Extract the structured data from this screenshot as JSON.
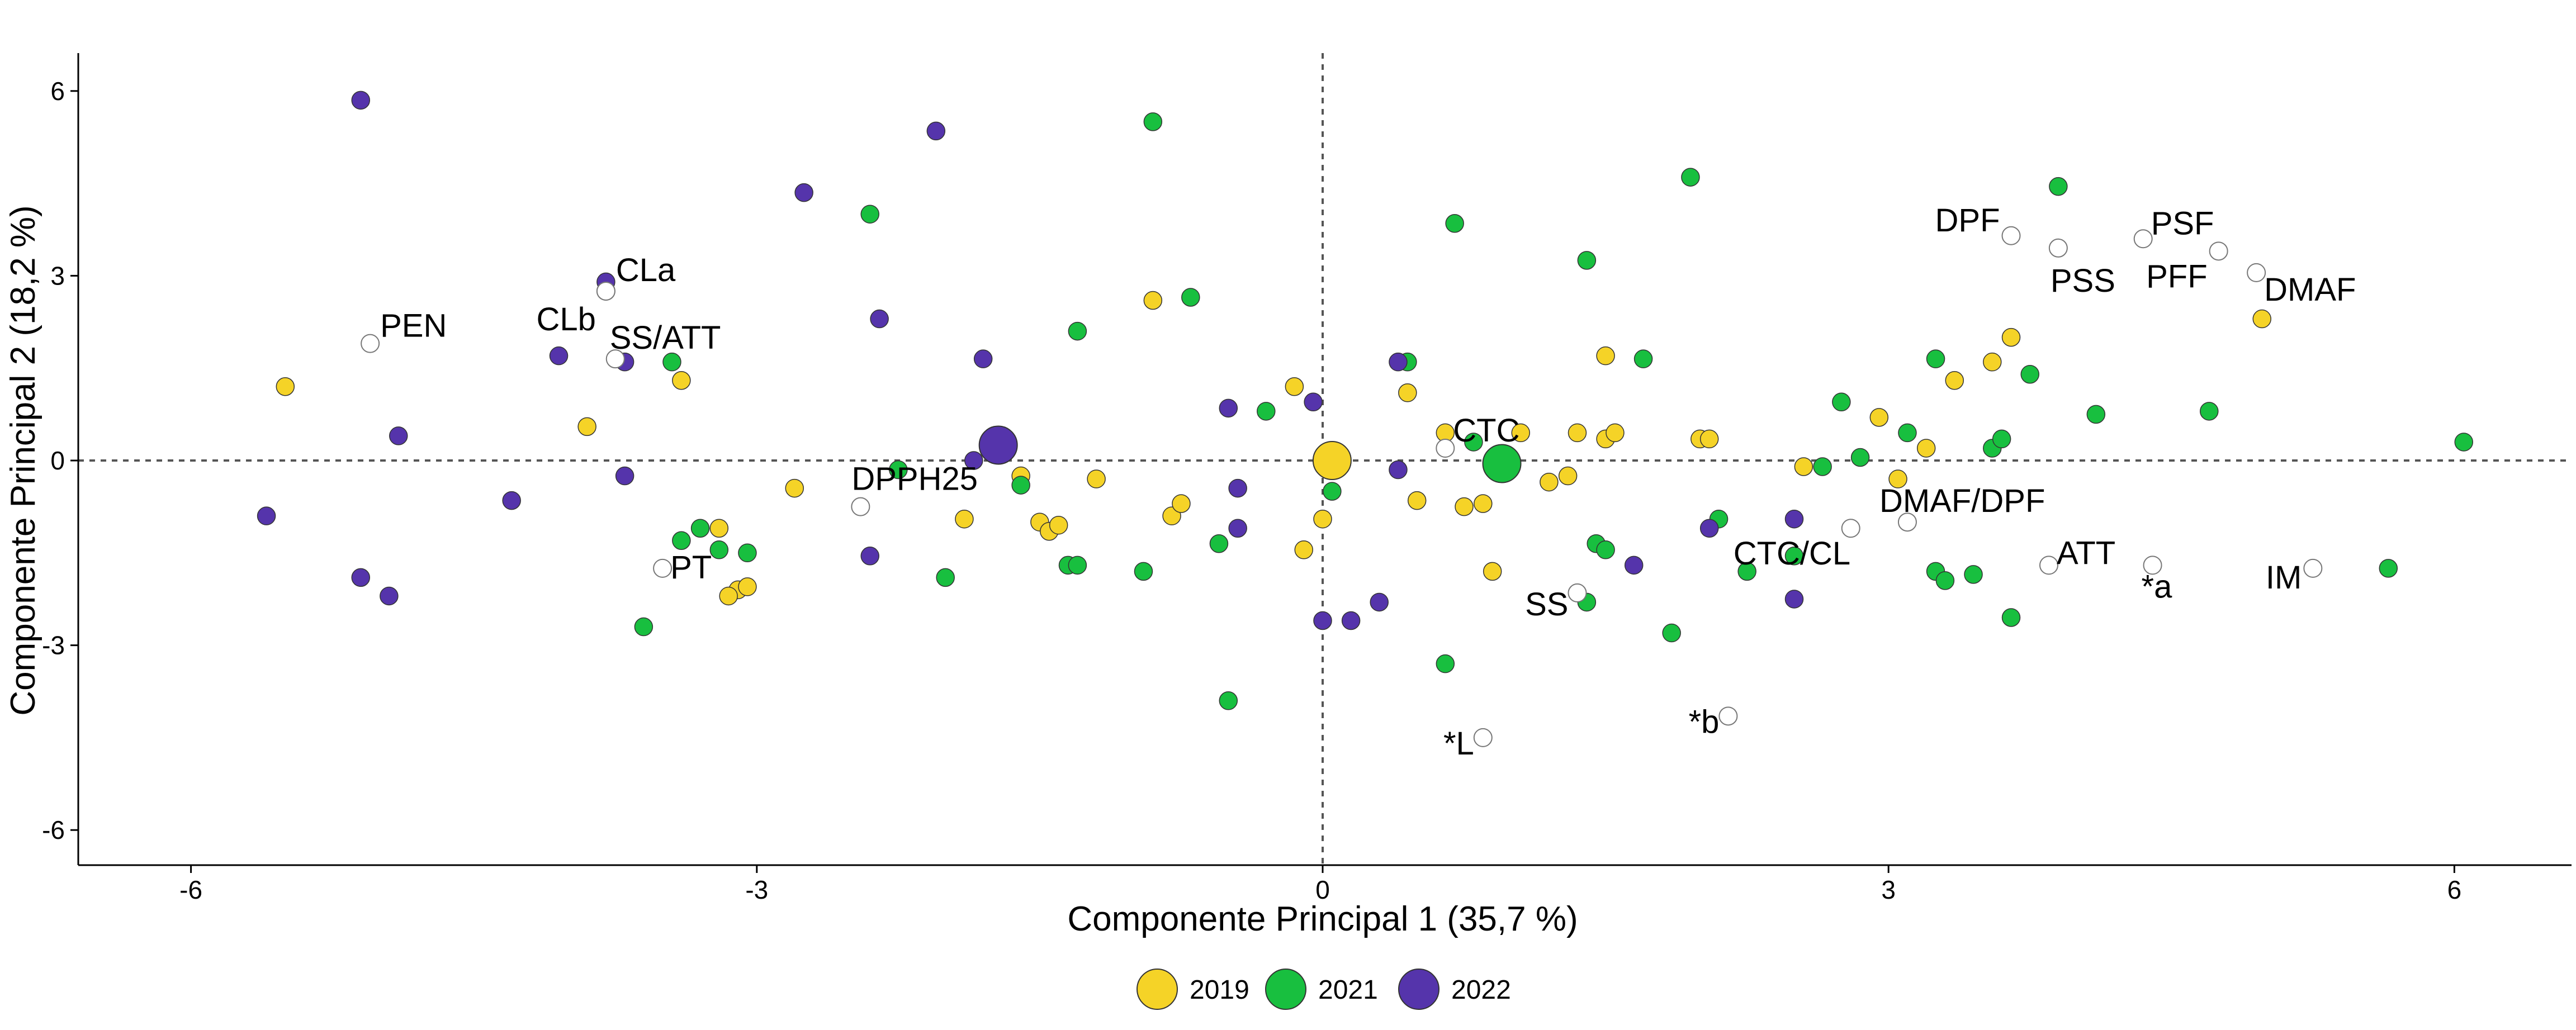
{
  "chart_data": {
    "type": "scatter",
    "title": "",
    "xlabel": "Componente Principal 1 (35,7 %)",
    "ylabel": "Componente Principal 2 (18,2 %)",
    "xlim": [
      -6.6,
      6.6
    ],
    "ylim": [
      -6.6,
      6.6
    ],
    "xticks": [
      -6,
      -3,
      0,
      3,
      6
    ],
    "yticks": [
      -6,
      -3,
      0,
      3,
      6
    ],
    "reference_lines": {
      "x": 0,
      "y": 0,
      "style": "dashed"
    },
    "grid": false,
    "legend_position": "bottom",
    "series": [
      {
        "name": "2019",
        "color": "#F5D327",
        "centroid": [
          0.05,
          0.0
        ],
        "points": [
          [
            -5.5,
            1.2
          ],
          [
            -3.9,
            0.55
          ],
          [
            -3.4,
            1.3
          ],
          [
            -3.2,
            -1.1
          ],
          [
            -3.1,
            -2.1
          ],
          [
            -3.15,
            -2.2
          ],
          [
            -3.05,
            -2.05
          ],
          [
            -2.8,
            -0.45
          ],
          [
            -1.9,
            -0.95
          ],
          [
            -1.6,
            -0.25
          ],
          [
            -1.5,
            -1.0
          ],
          [
            -1.45,
            -1.15
          ],
          [
            -1.4,
            -1.05
          ],
          [
            -1.2,
            -0.3
          ],
          [
            -0.9,
            2.6
          ],
          [
            -0.8,
            -0.9
          ],
          [
            -0.75,
            -0.7
          ],
          [
            -0.15,
            1.2
          ],
          [
            -0.1,
            -1.45
          ],
          [
            0.0,
            -0.95
          ],
          [
            0.45,
            1.1
          ],
          [
            0.5,
            -0.65
          ],
          [
            0.65,
            0.45
          ],
          [
            0.75,
            -0.75
          ],
          [
            0.85,
            -0.7
          ],
          [
            0.9,
            -1.8
          ],
          [
            1.05,
            0.45
          ],
          [
            1.2,
            -0.35
          ],
          [
            1.3,
            -0.25
          ],
          [
            1.35,
            0.45
          ],
          [
            1.5,
            1.7
          ],
          [
            1.5,
            0.35
          ],
          [
            1.55,
            0.45
          ],
          [
            2.0,
            0.35
          ],
          [
            2.05,
            0.35
          ],
          [
            2.55,
            -0.1
          ],
          [
            2.95,
            0.7
          ],
          [
            3.05,
            -0.3
          ],
          [
            3.2,
            0.2
          ],
          [
            3.35,
            1.3
          ],
          [
            3.55,
            1.6
          ],
          [
            3.65,
            2.0
          ],
          [
            4.98,
            2.3
          ]
        ]
      },
      {
        "name": "2021",
        "color": "#18BF3F",
        "centroid": [
          0.95,
          -0.05
        ],
        "points": [
          [
            -3.6,
            -2.7
          ],
          [
            -3.45,
            1.6
          ],
          [
            -3.4,
            -1.3
          ],
          [
            -3.3,
            -1.1
          ],
          [
            -3.2,
            -1.45
          ],
          [
            -3.05,
            -1.5
          ],
          [
            -2.4,
            4.0
          ],
          [
            -2.25,
            -0.15
          ],
          [
            -2.0,
            -1.9
          ],
          [
            -1.6,
            -0.4
          ],
          [
            -1.3,
            2.1
          ],
          [
            -1.35,
            -1.7
          ],
          [
            -1.3,
            -1.7
          ],
          [
            -0.95,
            -1.8
          ],
          [
            -0.9,
            5.5
          ],
          [
            -0.7,
            2.65
          ],
          [
            -0.55,
            -1.35
          ],
          [
            -0.5,
            -3.9
          ],
          [
            -0.3,
            0.8
          ],
          [
            0.05,
            -0.5
          ],
          [
            0.45,
            1.6
          ],
          [
            0.65,
            -3.3
          ],
          [
            0.7,
            3.85
          ],
          [
            0.8,
            0.3
          ],
          [
            1.4,
            3.25
          ],
          [
            1.45,
            -1.35
          ],
          [
            1.5,
            -1.45
          ],
          [
            1.4,
            -2.3
          ],
          [
            1.7,
            1.65
          ],
          [
            1.85,
            -2.8
          ],
          [
            1.95,
            4.6
          ],
          [
            2.1,
            -0.95
          ],
          [
            2.25,
            -1.8
          ],
          [
            2.5,
            -1.55
          ],
          [
            2.65,
            -0.1
          ],
          [
            2.75,
            0.95
          ],
          [
            2.85,
            0.05
          ],
          [
            3.1,
            0.45
          ],
          [
            3.25,
            1.65
          ],
          [
            3.25,
            -1.8
          ],
          [
            3.3,
            -1.95
          ],
          [
            3.45,
            -1.85
          ],
          [
            3.55,
            0.2
          ],
          [
            3.6,
            0.35
          ],
          [
            3.65,
            -2.55
          ],
          [
            3.75,
            1.4
          ],
          [
            3.9,
            4.45
          ],
          [
            4.1,
            0.75
          ],
          [
            4.7,
            0.8
          ],
          [
            6.05,
            0.3
          ],
          [
            5.65,
            -1.75
          ]
        ]
      },
      {
        "name": "2022",
        "color": "#5534AB",
        "centroid": [
          -1.72,
          0.25
        ],
        "points": [
          [
            -5.6,
            -0.9
          ],
          [
            -5.1,
            5.85
          ],
          [
            -5.1,
            -1.9
          ],
          [
            -4.95,
            -2.2
          ],
          [
            -4.9,
            0.4
          ],
          [
            -4.3,
            -0.65
          ],
          [
            -4.05,
            1.7
          ],
          [
            -3.8,
            2.9
          ],
          [
            -3.7,
            1.6
          ],
          [
            -3.7,
            -0.25
          ],
          [
            -2.75,
            4.35
          ],
          [
            -2.4,
            -1.55
          ],
          [
            -2.35,
            2.3
          ],
          [
            -2.05,
            5.35
          ],
          [
            -1.85,
            0.0
          ],
          [
            -1.8,
            1.65
          ],
          [
            -0.5,
            0.85
          ],
          [
            -0.45,
            -0.45
          ],
          [
            -0.45,
            -1.1
          ],
          [
            -0.05,
            0.95
          ],
          [
            0.0,
            -2.6
          ],
          [
            0.15,
            -2.6
          ],
          [
            0.3,
            -2.3
          ],
          [
            0.4,
            1.6
          ],
          [
            0.4,
            -0.15
          ],
          [
            1.65,
            -1.7
          ],
          [
            2.05,
            -1.1
          ],
          [
            2.5,
            -0.95
          ],
          [
            2.5,
            -2.25
          ]
        ]
      }
    ],
    "variables": [
      {
        "name": "PEN",
        "x": -5.05,
        "y": 1.9
      },
      {
        "name": "CLa",
        "x": -3.8,
        "y": 2.75
      },
      {
        "name": "CLb",
        "x": -3.8,
        "y": 2.75
      },
      {
        "name": "SS/ATT",
        "x": -3.75,
        "y": 1.65
      },
      {
        "name": "PT",
        "x": -3.5,
        "y": -1.75
      },
      {
        "name": "DPPH25",
        "x": -2.45,
        "y": -0.75
      },
      {
        "name": "CTC",
        "x": 0.65,
        "y": 0.2
      },
      {
        "name": "SS",
        "x": 1.35,
        "y": -2.15
      },
      {
        "name": "*L",
        "x": 0.85,
        "y": -4.5
      },
      {
        "name": "*b",
        "x": 2.15,
        "y": -4.15
      },
      {
        "name": "CTC/CL",
        "x": 2.8,
        "y": -1.1
      },
      {
        "name": "DMAF/DPF",
        "x": 3.1,
        "y": -1.0
      },
      {
        "name": "ATT",
        "x": 3.85,
        "y": -1.7
      },
      {
        "name": "*a",
        "x": 4.4,
        "y": -1.7
      },
      {
        "name": "IM",
        "x": 5.25,
        "y": -1.75
      },
      {
        "name": "DPF",
        "x": 3.65,
        "y": 3.65
      },
      {
        "name": "PSF",
        "x": 4.35,
        "y": 3.6
      },
      {
        "name": "PSS",
        "x": 3.9,
        "y": 3.45
      },
      {
        "name": "PFF",
        "x": 4.75,
        "y": 3.4
      },
      {
        "name": "DMAF",
        "x": 4.95,
        "y": 3.05
      }
    ],
    "legend": [
      "2019",
      "2021",
      "2022"
    ]
  }
}
